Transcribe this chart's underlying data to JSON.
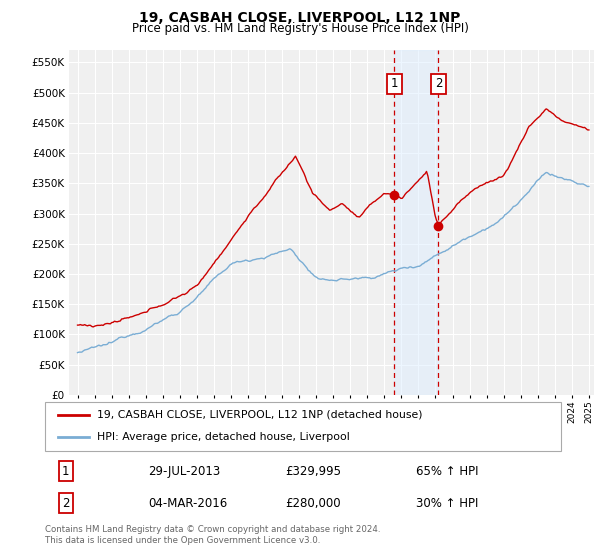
{
  "title": "19, CASBAH CLOSE, LIVERPOOL, L12 1NP",
  "subtitle": "Price paid vs. HM Land Registry's House Price Index (HPI)",
  "legend_line1": "19, CASBAH CLOSE, LIVERPOOL, L12 1NP (detached house)",
  "legend_line2": "HPI: Average price, detached house, Liverpool",
  "transaction1_date": "29-JUL-2013",
  "transaction1_price": "£329,995",
  "transaction1_hpi": "65% ↑ HPI",
  "transaction2_date": "04-MAR-2016",
  "transaction2_price": "£280,000",
  "transaction2_hpi": "30% ↑ HPI",
  "footnote": "Contains HM Land Registry data © Crown copyright and database right 2024.\nThis data is licensed under the Open Government Licence v3.0.",
  "red_color": "#cc0000",
  "blue_color": "#7aadd4",
  "highlight_color": "#ddeeff",
  "t1_x": 2013.58,
  "t2_x": 2016.17,
  "t1_y_red": 329995,
  "t2_y_red": 280000,
  "ylim_min": 0,
  "ylim_max": 570000,
  "xlim_min": 1994.5,
  "xlim_max": 2025.3,
  "bg_color": "#f0f0f0"
}
